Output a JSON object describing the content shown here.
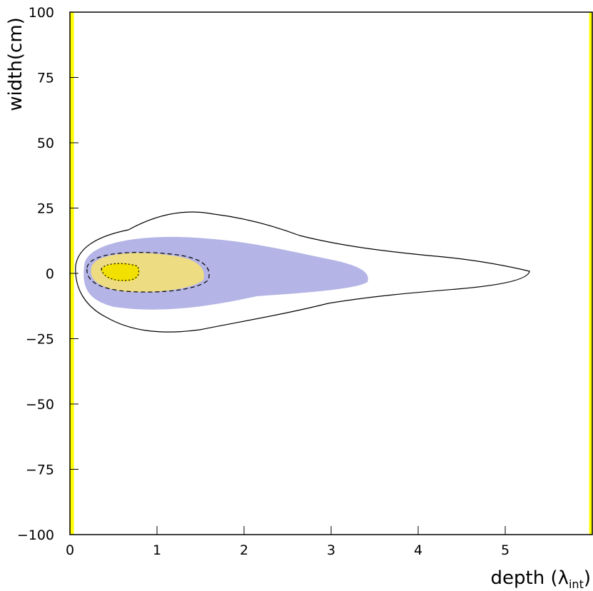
{
  "chart_data": {
    "type": "contour",
    "ylabel": "width(cm)",
    "xlabel": {
      "text": "depth (λ",
      "subscript": "int",
      "suffix": ")"
    },
    "xlim": [
      0,
      6
    ],
    "xticks": [
      0,
      1,
      2,
      3,
      4,
      5
    ],
    "ylim": [
      -100,
      100
    ],
    "yticks": [
      {
        "value": -100,
        "label": "−100"
      },
      {
        "value": -75,
        "label": "−75"
      },
      {
        "value": -50,
        "label": "−50"
      },
      {
        "value": -25,
        "label": "−25"
      },
      0,
      25,
      50,
      75,
      100
    ],
    "fill_colors": [
      "#b4b4e6",
      "#eedc82",
      "#f2e000"
    ]
  }
}
